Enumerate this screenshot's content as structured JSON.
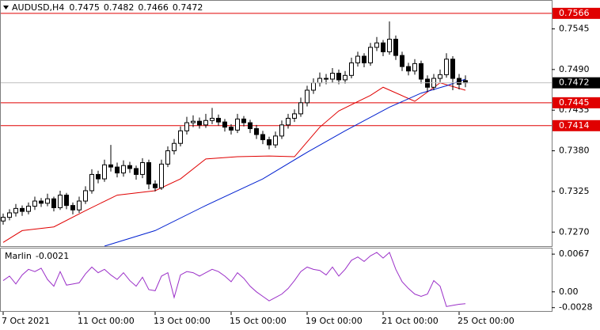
{
  "chart_data": [
    {
      "type": "candlestick",
      "title": "AUDUSD,H4",
      "categories": [
        "7 Oct 2021",
        null,
        null,
        null,
        null,
        null,
        null,
        null,
        null,
        null,
        null,
        null,
        "11 Oct 00:00",
        null,
        null,
        null,
        null,
        null,
        null,
        null,
        null,
        null,
        null,
        null,
        "13 Oct 00:00",
        null,
        null,
        null,
        null,
        null,
        null,
        null,
        null,
        null,
        null,
        null,
        "15 Oct 00:00",
        null,
        null,
        null,
        null,
        null,
        null,
        null,
        null,
        null,
        null,
        null,
        "19 Oct 00:00",
        null,
        null,
        null,
        null,
        null,
        null,
        null,
        null,
        null,
        null,
        null,
        "21 Oct 00:00",
        null,
        null,
        null,
        null,
        null,
        null,
        null,
        null,
        null,
        null,
        null,
        "25 Oct 00:00",
        null
      ],
      "ohlc": [
        [
          0.7285,
          0.7295,
          0.728,
          0.729
        ],
        [
          0.729,
          0.7301,
          0.7286,
          0.7296
        ],
        [
          0.7296,
          0.7308,
          0.7291,
          0.7302
        ],
        [
          0.7302,
          0.7306,
          0.7292,
          0.7298
        ],
        [
          0.7298,
          0.731,
          0.7294,
          0.7305
        ],
        [
          0.7305,
          0.7318,
          0.73,
          0.7312
        ],
        [
          0.7312,
          0.7316,
          0.7304,
          0.7309
        ],
        [
          0.7309,
          0.7322,
          0.7305,
          0.7315
        ],
        [
          0.7315,
          0.7318,
          0.7298,
          0.7303
        ],
        [
          0.7303,
          0.7326,
          0.73,
          0.732
        ],
        [
          0.732,
          0.7323,
          0.7301,
          0.7306
        ],
        [
          0.7306,
          0.731,
          0.7294,
          0.73
        ],
        [
          0.73,
          0.7318,
          0.7296,
          0.7312
        ],
        [
          0.7312,
          0.7332,
          0.7308,
          0.7326
        ],
        [
          0.7326,
          0.7355,
          0.7322,
          0.7348
        ],
        [
          0.7348,
          0.7353,
          0.7336,
          0.7342
        ],
        [
          0.7342,
          0.7368,
          0.7338,
          0.7361
        ],
        [
          0.7361,
          0.7388,
          0.7352,
          0.7358
        ],
        [
          0.7358,
          0.7364,
          0.7344,
          0.735
        ],
        [
          0.735,
          0.7367,
          0.7345,
          0.736
        ],
        [
          0.736,
          0.7365,
          0.735,
          0.7356
        ],
        [
          0.7356,
          0.736,
          0.7341,
          0.7348
        ],
        [
          0.7348,
          0.737,
          0.7343,
          0.7364
        ],
        [
          0.7364,
          0.7368,
          0.7328,
          0.7335
        ],
        [
          0.7335,
          0.734,
          0.7325,
          0.733
        ],
        [
          0.733,
          0.7368,
          0.7327,
          0.7362
        ],
        [
          0.7362,
          0.7386,
          0.7358,
          0.738
        ],
        [
          0.738,
          0.7396,
          0.7375,
          0.739
        ],
        [
          0.739,
          0.7413,
          0.7386,
          0.7407
        ],
        [
          0.7407,
          0.7426,
          0.7402,
          0.7418
        ],
        [
          0.7418,
          0.7428,
          0.7412,
          0.742
        ],
        [
          0.742,
          0.7425,
          0.741,
          0.7415
        ],
        [
          0.7415,
          0.743,
          0.7411,
          0.7421
        ],
        [
          0.7421,
          0.7438,
          0.7416,
          0.7424
        ],
        [
          0.7424,
          0.7429,
          0.7414,
          0.7419
        ],
        [
          0.7419,
          0.7423,
          0.7406,
          0.7412
        ],
        [
          0.7412,
          0.7416,
          0.7402,
          0.7408
        ],
        [
          0.7408,
          0.743,
          0.7404,
          0.7423
        ],
        [
          0.7423,
          0.7427,
          0.7413,
          0.7418
        ],
        [
          0.7418,
          0.7422,
          0.7404,
          0.741
        ],
        [
          0.741,
          0.7415,
          0.7396,
          0.7402
        ],
        [
          0.7402,
          0.7407,
          0.7389,
          0.7395
        ],
        [
          0.7395,
          0.7399,
          0.7382,
          0.7388
        ],
        [
          0.7388,
          0.7406,
          0.7384,
          0.74
        ],
        [
          0.74,
          0.7421,
          0.7396,
          0.7415
        ],
        [
          0.7415,
          0.743,
          0.741,
          0.7424
        ],
        [
          0.7424,
          0.7436,
          0.7419,
          0.743
        ],
        [
          0.743,
          0.7452,
          0.7426,
          0.7445
        ],
        [
          0.7445,
          0.7468,
          0.744,
          0.7462
        ],
        [
          0.7462,
          0.7478,
          0.7457,
          0.7472
        ],
        [
          0.7472,
          0.7486,
          0.7467,
          0.7478
        ],
        [
          0.7478,
          0.7484,
          0.747,
          0.7477
        ],
        [
          0.7477,
          0.7492,
          0.7472,
          0.7485
        ],
        [
          0.7485,
          0.749,
          0.747,
          0.7476
        ],
        [
          0.7476,
          0.7488,
          0.7471,
          0.7482
        ],
        [
          0.7482,
          0.7506,
          0.7478,
          0.7499
        ],
        [
          0.7499,
          0.7514,
          0.7494,
          0.7508
        ],
        [
          0.7508,
          0.7512,
          0.7493,
          0.7499
        ],
        [
          0.7499,
          0.7526,
          0.7495,
          0.752
        ],
        [
          0.752,
          0.7534,
          0.7515,
          0.7526
        ],
        [
          0.7526,
          0.753,
          0.7508,
          0.7514
        ],
        [
          0.7514,
          0.7555,
          0.751,
          0.7531
        ],
        [
          0.7531,
          0.7536,
          0.7503,
          0.7509
        ],
        [
          0.7509,
          0.7514,
          0.7488,
          0.7494
        ],
        [
          0.7494,
          0.7499,
          0.7482,
          0.7488
        ],
        [
          0.7488,
          0.7504,
          0.7483,
          0.7498
        ],
        [
          0.7498,
          0.7502,
          0.7471,
          0.7477
        ],
        [
          0.7477,
          0.7482,
          0.746,
          0.7466
        ],
        [
          0.7466,
          0.7484,
          0.7462,
          0.7478
        ],
        [
          0.7478,
          0.749,
          0.7473,
          0.7483
        ],
        [
          0.7483,
          0.7512,
          0.7479,
          0.7504
        ],
        [
          0.7504,
          0.7508,
          0.7462,
          0.7478
        ],
        [
          0.7478,
          0.7484,
          0.7463,
          0.747
        ],
        [
          0.7475,
          0.7482,
          0.7466,
          0.7472
        ]
      ],
      "moving_averages": [
        {
          "color": "#e00000",
          "x": [
            0,
            3,
            8,
            13,
            18,
            24,
            28,
            32,
            37,
            42,
            46,
            50,
            53,
            58,
            60,
            65,
            69,
            73
          ],
          "values": [
            0.7256,
            0.7272,
            0.7277,
            0.7299,
            0.732,
            0.7326,
            0.7342,
            0.7369,
            0.7372,
            0.7373,
            0.7372,
            0.7412,
            0.7434,
            0.7455,
            0.7466,
            0.7447,
            0.7472,
            0.7462
          ]
        },
        {
          "color": "#0020d0",
          "x": [
            16,
            24,
            32,
            41,
            48,
            54,
            61,
            66,
            70,
            73
          ],
          "values": [
            0.7251,
            0.7272,
            0.7306,
            0.7342,
            0.7378,
            0.7407,
            0.7439,
            0.7458,
            0.7468,
            0.7477
          ]
        }
      ],
      "levels": [
        {
          "value": 0.7566,
          "color": "#e00000"
        },
        {
          "value": 0.7445,
          "color": "#e00000"
        },
        {
          "value": 0.7414,
          "color": "#e00000"
        }
      ],
      "ylim": [
        0.7251,
        0.7583
      ],
      "yticks": [
        0.7545,
        {
          "value": 0.749,
          "label": "0.7490"
        },
        0.7435,
        {
          "value": 0.738,
          "label": "0.7380"
        },
        0.7325,
        {
          "value": 0.727,
          "label": "0.7270"
        }
      ],
      "bull_color": "#ffffff",
      "bear_color": "#000000"
    },
    {
      "type": "line",
      "title": "Marlin",
      "color": "#9b30c8",
      "values": [
        0.002,
        0.0028,
        0.0014,
        0.003,
        0.004,
        0.0036,
        0.0042,
        0.0022,
        0.001,
        0.0036,
        0.0012,
        0.0014,
        0.0016,
        0.0032,
        0.0044,
        0.0034,
        0.004,
        0.003,
        0.0022,
        0.0034,
        0.002,
        0.001,
        0.0026,
        0.0004,
        0.0002,
        0.0028,
        0.0034,
        -0.001,
        0.003,
        0.0036,
        0.0034,
        0.0028,
        0.0034,
        0.004,
        0.0036,
        0.0028,
        0.0018,
        0.0034,
        0.0024,
        0.001,
        0.0,
        -0.0008,
        -0.0016,
        -0.001,
        -0.0004,
        0.0006,
        0.002,
        0.0036,
        0.0044,
        0.004,
        0.0038,
        0.003,
        0.0044,
        0.0028,
        0.004,
        0.0056,
        0.0062,
        0.0054,
        0.0064,
        0.007,
        0.006,
        0.007,
        0.004,
        0.0018,
        0.0006,
        -0.0004,
        -0.0008,
        -0.0004,
        0.002,
        0.001,
        -0.0026,
        -0.0024,
        -0.0022,
        -0.0021
      ],
      "ylim": [
        -0.0034,
        0.0077
      ],
      "yticks": [
        0.0067,
        {
          "value": 0,
          "label": "0.00"
        },
        -0.0028
      ]
    }
  ]
}
